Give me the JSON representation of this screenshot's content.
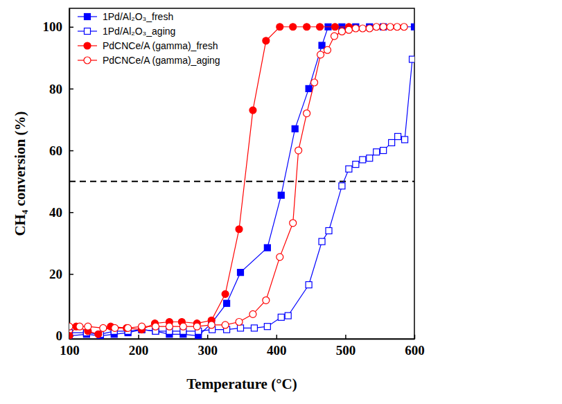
{
  "chart_data": {
    "type": "line",
    "x_label": "Temperature (°C)",
    "y_label": "CH₄ conversion (%)",
    "xlim": [
      100,
      600
    ],
    "xticks": [
      100,
      200,
      300,
      400,
      500,
      600
    ],
    "ylim": [
      -1,
      106
    ],
    "yticks": [
      0,
      20,
      40,
      60,
      80,
      100
    ],
    "hline": 50,
    "legend": "upper left",
    "series": [
      {
        "name": "1Pd/Al₂O₃_fresh",
        "color": "#0000ff",
        "marker": "square",
        "x": [
          100,
          125,
          145,
          165,
          185,
          205,
          225,
          245,
          265,
          287,
          306,
          328,
          348,
          387,
          407,
          427,
          447,
          466,
          475,
          495,
          515,
          535,
          555,
          600
        ],
        "values": [
          0,
          0.5,
          0,
          0.5,
          1,
          2,
          1.5,
          0.5,
          0.5,
          0,
          4,
          10.5,
          20.5,
          28.5,
          45.5,
          67,
          80,
          94,
          100,
          100,
          100,
          100,
          100,
          100
        ]
      },
      {
        "name": "1Pd/Al₂O₃_aging",
        "color": "#0000ff",
        "marker": "square-open",
        "x": [
          100,
          125,
          145,
          165,
          185,
          205,
          225,
          245,
          265,
          287,
          307,
          328,
          348,
          368,
          387,
          407,
          417,
          447,
          466,
          476,
          495,
          505,
          515,
          525,
          535,
          545,
          555,
          567,
          576,
          586,
          597
        ],
        "values": [
          1,
          1,
          0.5,
          1.5,
          1.5,
          2,
          1.5,
          1.5,
          1.5,
          1.5,
          2,
          2,
          2.5,
          2.5,
          3,
          6,
          6.5,
          16.5,
          30.5,
          34,
          48.5,
          54,
          55.5,
          57,
          57.5,
          59.5,
          60,
          62.5,
          64.5,
          63.5,
          89.5
        ]
      },
      {
        "name": "PdCNCe/A (gamma)_fresh",
        "color": "#ff0000",
        "marker": "circle",
        "x": [
          100,
          110,
          127,
          142,
          160,
          183,
          205,
          224,
          245,
          263,
          285,
          306,
          326,
          346,
          366,
          385,
          405,
          424,
          444,
          463,
          485,
          505
        ],
        "values": [
          0,
          3,
          1.5,
          0.5,
          3,
          2.5,
          2,
          4,
          4.5,
          4.5,
          4,
          5,
          13.5,
          34.5,
          73,
          95.5,
          100,
          100,
          100,
          100,
          100,
          100
        ]
      },
      {
        "name": "PdCNCe/A (gamma)_aging",
        "color": "#ff0000",
        "marker": "circle-open",
        "x": [
          100,
          115,
          127,
          149,
          166,
          185,
          205,
          225,
          245,
          265,
          285,
          306,
          326,
          346,
          366,
          385,
          405,
          424,
          432,
          444,
          455,
          464,
          474,
          484,
          495,
          505,
          515,
          525,
          535,
          545,
          555,
          565,
          575,
          585
        ],
        "values": [
          3,
          3,
          3,
          2.5,
          2.5,
          2.5,
          3,
          3,
          3,
          3,
          3,
          3.5,
          3.5,
          4.5,
          7,
          11.5,
          25.5,
          36.5,
          60,
          72,
          82,
          91,
          92.5,
          97,
          98.5,
          99,
          99.5,
          99.5,
          99.5,
          100,
          100,
          100,
          100,
          100
        ]
      }
    ]
  }
}
